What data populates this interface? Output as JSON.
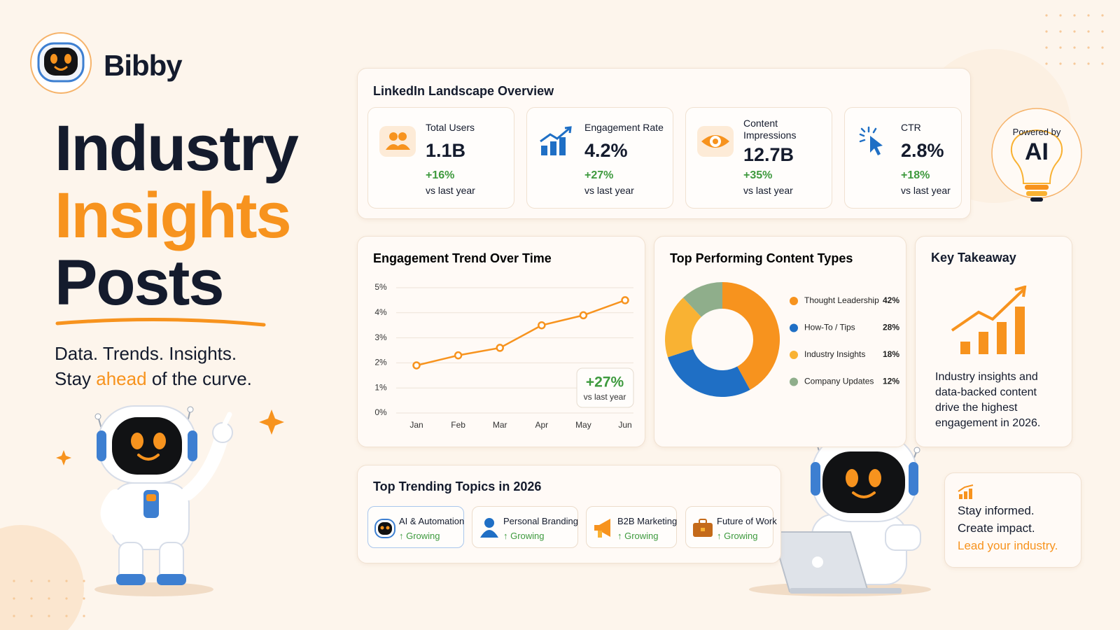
{
  "brand": {
    "name": "Bibby"
  },
  "hero": {
    "title_lines": [
      "Industry",
      "Insights",
      "Posts"
    ],
    "tagline_1": "Data. Trends. Insights.",
    "tagline_2": {
      "before": "Stay",
      "highlight": "ahead",
      "after": "of the curve."
    }
  },
  "overview": {
    "title": "LinkedIn Landscape Overview",
    "cards": [
      {
        "label": "Total Users",
        "value": "1.1B",
        "change": "+16%",
        "note": "vs last year"
      },
      {
        "label": "Engagement Rate",
        "value": "4.2%",
        "change": "+27%",
        "note": "vs last year"
      },
      {
        "label": "Content Impressions",
        "value": "12.7B",
        "change": "+35%",
        "note": "vs last year"
      },
      {
        "label": "CTR",
        "value": "2.8%",
        "change": "+18%",
        "note": "vs last year"
      }
    ]
  },
  "powered": {
    "label": "Powered by",
    "text": "AI"
  },
  "chart_data": [
    {
      "type": "line",
      "title": "Engagement Trend Over Time",
      "categories": [
        "Jan",
        "Feb",
        "Mar",
        "Apr",
        "May",
        "Jun"
      ],
      "values": [
        1.9,
        2.3,
        2.6,
        3.5,
        3.9,
        4.5
      ],
      "color": "#f7931e",
      "ylim": [
        0,
        5
      ],
      "yticks": [
        {
          "value": 0,
          "label": "0%"
        },
        {
          "value": 1,
          "label": "1%"
        },
        {
          "value": 2,
          "label": "2%"
        },
        {
          "value": 3,
          "label": "3%"
        },
        {
          "value": 4,
          "label": "4%"
        },
        {
          "value": 5,
          "label": "5%"
        }
      ],
      "grid": true,
      "annotation": {
        "value": "+27%",
        "text": "vs last year"
      }
    },
    {
      "type": "pie",
      "title": "Top Performing Content Types",
      "categories": [
        "Thought Leadership",
        "How-To / Tips",
        "Industry Insights",
        "Company Updates"
      ],
      "values": [
        42,
        28,
        18,
        12
      ],
      "value_labels": [
        "42%",
        "28%",
        "18%",
        "12%"
      ],
      "colors": [
        "#f7931e",
        "#1f6fc5",
        "#f9b233",
        "#8fae8b"
      ],
      "donut": true
    }
  ],
  "takeaway": {
    "title": "Key Takeaway",
    "text": "Industry insights and data-backed content drive the highest engagement in 2026."
  },
  "topics": {
    "title": "Top Trending Topics in 2026",
    "items": [
      {
        "name": "AI & Automation",
        "status": "↑ Growing"
      },
      {
        "name": "Personal Branding",
        "status": "↑ Growing"
      },
      {
        "name": "B2B Marketing",
        "status": "↑ Growing"
      },
      {
        "name": "Future of Work",
        "status": "↑ Growing"
      }
    ]
  },
  "cta": {
    "lines": [
      "Stay informed.",
      "Create impact."
    ],
    "highlight": "Lead your industry."
  }
}
